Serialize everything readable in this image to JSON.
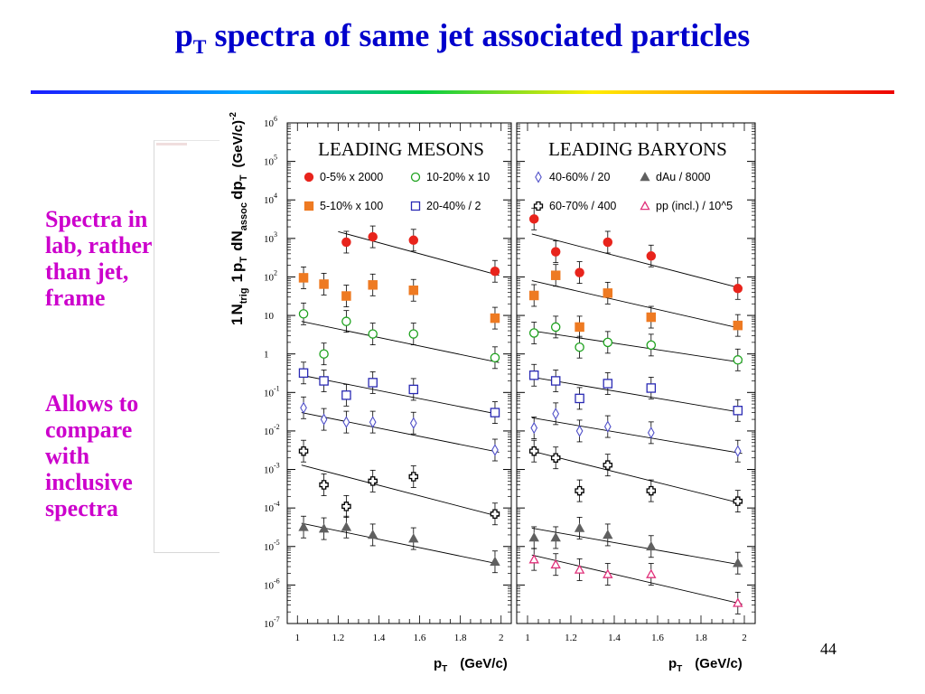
{
  "slide": {
    "title_main": "p",
    "title_sub": "T",
    "title_rest": " spectra of same jet associated particles",
    "side_text_1": [
      "Spectra in",
      "lab, rather",
      "than jet,",
      "frame"
    ],
    "side_text_2": [
      "Allows to",
      "compare",
      "with",
      "inclusive",
      "spectra"
    ],
    "page_number": "44"
  },
  "chart_data": {
    "type": "scatter",
    "y_scale": "log",
    "ylim": [
      1e-07,
      1000000.0
    ],
    "xlim": [
      0.95,
      2.05
    ],
    "ytick_labels": [
      {
        "b": "10",
        "e": "-7"
      },
      {
        "b": "10",
        "e": "-6"
      },
      {
        "b": "10",
        "e": "-5"
      },
      {
        "b": "10",
        "e": "-4"
      },
      {
        "b": "10",
        "e": "-3"
      },
      {
        "b": "10",
        "e": "-2"
      },
      {
        "b": "10",
        "e": "-1"
      },
      {
        "b": "1",
        "e": ""
      },
      {
        "b": "10",
        "e": ""
      },
      {
        "b": "10",
        "e": "2"
      },
      {
        "b": "10",
        "e": "3"
      },
      {
        "b": "10",
        "e": "4"
      },
      {
        "b": "10",
        "e": "5"
      },
      {
        "b": "10",
        "e": "6"
      }
    ],
    "xticks": [
      1,
      1.2,
      1.4,
      1.6,
      1.8,
      2
    ],
    "xtick_labels": [
      "1",
      "1.2",
      "1.4",
      "1.6",
      "1.8",
      "2"
    ],
    "xlabel_main": "p",
    "xlabel_sub": "T",
    "xlabel_unit": "(GeV/c)",
    "ylabel": {
      "one": "1",
      "N": "N",
      "trig": "trig",
      "one2": "1",
      "p": "p",
      "T": "T",
      "dN": "dN",
      "assoc": "assoc",
      "dp": "dp",
      "T2": "T",
      "unit": "(GeV/c)",
      "exp": "-2"
    },
    "panels": [
      {
        "title": "LEADING MESONS",
        "legend": [
          {
            "label": "0-5% x 2000",
            "marker": "circle",
            "filled": true,
            "color": "#e8241c"
          },
          {
            "label": "10-20% x 10",
            "marker": "circle",
            "filled": false,
            "color": "#1ea21e"
          },
          {
            "label": "5-10% x 100",
            "marker": "square",
            "filled": true,
            "color": "#ee7a22"
          },
          {
            "label": "20-40% / 2",
            "marker": "square",
            "filled": false,
            "color": "#2a2ab4"
          }
        ],
        "series": [
          {
            "name": "0-5% x 2000",
            "marker": "circle",
            "filled": true,
            "color": "#e8241c",
            "points": [
              [
                1.24,
                800
              ],
              [
                1.37,
                1100
              ],
              [
                1.57,
                900
              ],
              [
                1.97,
                140
              ]
            ],
            "fit": [
              [
                1.2,
                1500
              ],
              [
                1.99,
                110
              ]
            ]
          },
          {
            "name": "5-10% x 100",
            "marker": "square",
            "filled": true,
            "color": "#ee7a22",
            "points": [
              [
                1.03,
                95
              ],
              [
                1.13,
                65
              ],
              [
                1.24,
                32
              ],
              [
                1.37,
                62
              ],
              [
                1.57,
                45
              ],
              [
                1.97,
                8.5
              ]
            ]
          },
          {
            "name": "10-20% x 10",
            "marker": "circle",
            "filled": false,
            "color": "#1ea21e",
            "points": [
              [
                1.03,
                11
              ],
              [
                1.13,
                1
              ],
              [
                1.24,
                7
              ],
              [
                1.37,
                3.3
              ],
              [
                1.57,
                3.3
              ],
              [
                1.97,
                0.8
              ]
            ],
            "fit": [
              [
                1.02,
                7
              ],
              [
                1.99,
                0.6
              ]
            ]
          },
          {
            "name": "20-40% / 2",
            "marker": "square",
            "filled": false,
            "color": "#2a2ab4",
            "points": [
              [
                1.03,
                0.32
              ],
              [
                1.13,
                0.2
              ],
              [
                1.24,
                0.085
              ],
              [
                1.37,
                0.18
              ],
              [
                1.57,
                0.12
              ],
              [
                1.97,
                0.03
              ]
            ],
            "fit": [
              [
                1.02,
                0.28
              ],
              [
                1.99,
                0.027
              ]
            ]
          },
          {
            "name": "",
            "marker": "diamond",
            "filled": false,
            "color": "#5050c8",
            "points": [
              [
                1.03,
                0.04
              ],
              [
                1.13,
                0.02
              ],
              [
                1.24,
                0.017
              ],
              [
                1.37,
                0.017
              ],
              [
                1.57,
                0.016
              ],
              [
                1.97,
                0.0032
              ]
            ],
            "fit": [
              [
                1.02,
                0.03
              ],
              [
                1.99,
                0.0028
              ]
            ]
          },
          {
            "name": "",
            "marker": "cross",
            "filled": false,
            "color": "#000000",
            "points": [
              [
                1.03,
                0.003
              ],
              [
                1.13,
                0.0004
              ],
              [
                1.24,
                0.00011
              ],
              [
                1.37,
                0.0005
              ],
              [
                1.57,
                0.00065
              ],
              [
                1.97,
                7e-05
              ]
            ],
            "fit": [
              [
                1.02,
                0.0013
              ],
              [
                1.99,
                6e-05
              ]
            ]
          },
          {
            "name": "",
            "marker": "triangle",
            "filled": true,
            "color": "#606060",
            "points": [
              [
                1.03,
                3.2e-05
              ],
              [
                1.13,
                2.9e-05
              ],
              [
                1.24,
                3.2e-05
              ],
              [
                1.37,
                2e-05
              ],
              [
                1.57,
                1.6e-05
              ],
              [
                1.97,
                4e-06
              ]
            ],
            "fit": [
              [
                1.02,
                4e-05
              ],
              [
                1.99,
                3.5e-06
              ]
            ]
          }
        ]
      },
      {
        "title": "LEADING BARYONS",
        "legend": [
          {
            "label": "40-60% / 20",
            "marker": "diamond",
            "filled": false,
            "color": "#5050c8"
          },
          {
            "label": "dAu / 8000",
            "marker": "triangle",
            "filled": true,
            "color": "#606060"
          },
          {
            "label": "60-70% / 400",
            "marker": "cross",
            "filled": false,
            "color": "#000000"
          },
          {
            "label": "pp (incl.) / 10^5",
            "marker": "triangle",
            "filled": false,
            "color": "#e0307a"
          }
        ],
        "series": [
          {
            "name": "",
            "marker": "circle",
            "filled": true,
            "color": "#e8241c",
            "points": [
              [
                1.03,
                3200
              ],
              [
                1.13,
                450
              ],
              [
                1.24,
                130
              ],
              [
                1.37,
                800
              ],
              [
                1.57,
                350
              ],
              [
                1.97,
                50
              ]
            ],
            "fit": [
              [
                1.02,
                1300
              ],
              [
                1.99,
                50
              ]
            ]
          },
          {
            "name": "",
            "marker": "square",
            "filled": true,
            "color": "#ee7a22",
            "points": [
              [
                1.03,
                33
              ],
              [
                1.13,
                110
              ],
              [
                1.24,
                5
              ],
              [
                1.37,
                38
              ],
              [
                1.57,
                9
              ],
              [
                1.97,
                5.5
              ]
            ],
            "fit": [
              [
                1.02,
                80
              ],
              [
                1.99,
                4.5
              ]
            ]
          },
          {
            "name": "",
            "marker": "circle",
            "filled": false,
            "color": "#1ea21e",
            "points": [
              [
                1.03,
                3.5
              ],
              [
                1.13,
                5
              ],
              [
                1.24,
                1.5
              ],
              [
                1.37,
                2
              ],
              [
                1.57,
                1.7
              ],
              [
                1.97,
                0.7
              ]
            ],
            "fit": [
              [
                1.02,
                4
              ],
              [
                1.99,
                0.6
              ]
            ]
          },
          {
            "name": "",
            "marker": "square",
            "filled": false,
            "color": "#2a2ab4",
            "points": [
              [
                1.03,
                0.28
              ],
              [
                1.13,
                0.2
              ],
              [
                1.24,
                0.07
              ],
              [
                1.37,
                0.17
              ],
              [
                1.57,
                0.13
              ],
              [
                1.97,
                0.034
              ]
            ],
            "fit": [
              [
                1.02,
                0.25
              ],
              [
                1.99,
                0.03
              ]
            ]
          },
          {
            "name": "40-60% / 20",
            "marker": "diamond",
            "filled": false,
            "color": "#5050c8",
            "points": [
              [
                1.03,
                0.012
              ],
              [
                1.13,
                0.028
              ],
              [
                1.24,
                0.01
              ],
              [
                1.37,
                0.013
              ],
              [
                1.57,
                0.009
              ],
              [
                1.97,
                0.003
              ]
            ],
            "fit": [
              [
                1.02,
                0.022
              ],
              [
                1.99,
                0.0026
              ]
            ]
          },
          {
            "name": "60-70% / 400",
            "marker": "cross",
            "filled": false,
            "color": "#000000",
            "points": [
              [
                1.03,
                0.003
              ],
              [
                1.13,
                0.002
              ],
              [
                1.24,
                0.00028
              ],
              [
                1.37,
                0.0013
              ],
              [
                1.57,
                0.00028
              ],
              [
                1.97,
                0.00015
              ]
            ],
            "fit": [
              [
                1.02,
                0.003
              ],
              [
                1.99,
                0.00013
              ]
            ]
          },
          {
            "name": "dAu / 8000",
            "marker": "triangle",
            "filled": true,
            "color": "#606060",
            "points": [
              [
                1.03,
                1.7e-05
              ],
              [
                1.13,
                1.7e-05
              ],
              [
                1.24,
                3e-05
              ],
              [
                1.37,
                2e-05
              ],
              [
                1.57,
                1e-05
              ],
              [
                1.97,
                3.7e-06
              ]
            ],
            "fit": [
              [
                1.02,
                3e-05
              ],
              [
                1.99,
                3.3e-06
              ]
            ]
          },
          {
            "name": "pp (incl.) / 10^5",
            "marker": "triangle",
            "filled": false,
            "color": "#e0307a",
            "points": [
              [
                1.03,
                4.6e-06
              ],
              [
                1.13,
                3.4e-06
              ],
              [
                1.24,
                2.5e-06
              ],
              [
                1.37,
                1.9e-06
              ],
              [
                1.57,
                1.9e-06
              ],
              [
                1.97,
                3.4e-07
              ]
            ],
            "fit": [
              [
                1.02,
                6e-06
              ],
              [
                1.99,
                3.2e-07
              ]
            ]
          }
        ]
      }
    ]
  }
}
